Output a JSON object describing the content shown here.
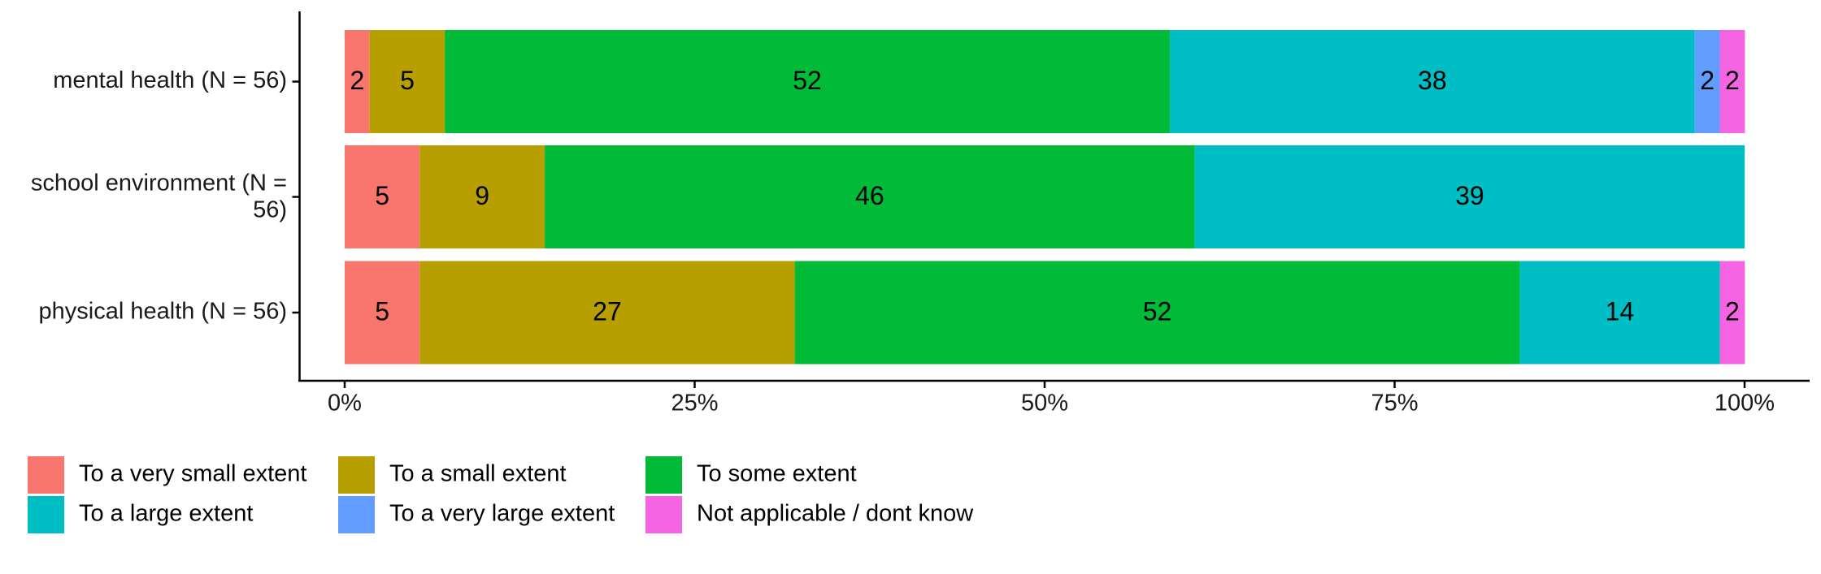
{
  "chart_data": {
    "type": "stacked-barh",
    "categories": [
      "mental health (N = 56)",
      "school environment (N = 56)",
      "physical health (N = 56)"
    ],
    "series": [
      {
        "name": "To a very small extent",
        "color": "#F8766D",
        "values": [
          1.79,
          5.36,
          5.36
        ],
        "value_labels": [
          "2",
          "5",
          "5"
        ]
      },
      {
        "name": "To a small extent",
        "color": "#B79F00",
        "values": [
          5.36,
          8.93,
          26.79
        ],
        "value_labels": [
          "5",
          "9",
          "27"
        ]
      },
      {
        "name": "To some extent",
        "color": "#00BA38",
        "values": [
          51.79,
          46.43,
          51.79
        ],
        "value_labels": [
          "52",
          "46",
          "52"
        ]
      },
      {
        "name": "To a large extent",
        "color": "#00BFC4",
        "values": [
          37.5,
          39.29,
          14.29
        ],
        "value_labels": [
          "38",
          "39",
          "14"
        ]
      },
      {
        "name": "To a very large extent",
        "color": "#619CFF",
        "values": [
          1.79,
          null,
          null
        ],
        "value_labels": [
          "2",
          null,
          null
        ]
      },
      {
        "name": "Not applicable / dont know",
        "color": "#F564E3",
        "values": [
          1.79,
          null,
          1.79
        ],
        "value_labels": [
          "2",
          null,
          "2"
        ]
      }
    ],
    "xlim": [
      0,
      100
    ],
    "xticks": [
      {
        "value": 0,
        "label": "0%"
      },
      {
        "value": 25,
        "label": "25%"
      },
      {
        "value": 50,
        "label": "50%"
      },
      {
        "value": 75,
        "label": "75%"
      },
      {
        "value": 100,
        "label": "100%"
      }
    ],
    "legend_position": "bottom"
  }
}
